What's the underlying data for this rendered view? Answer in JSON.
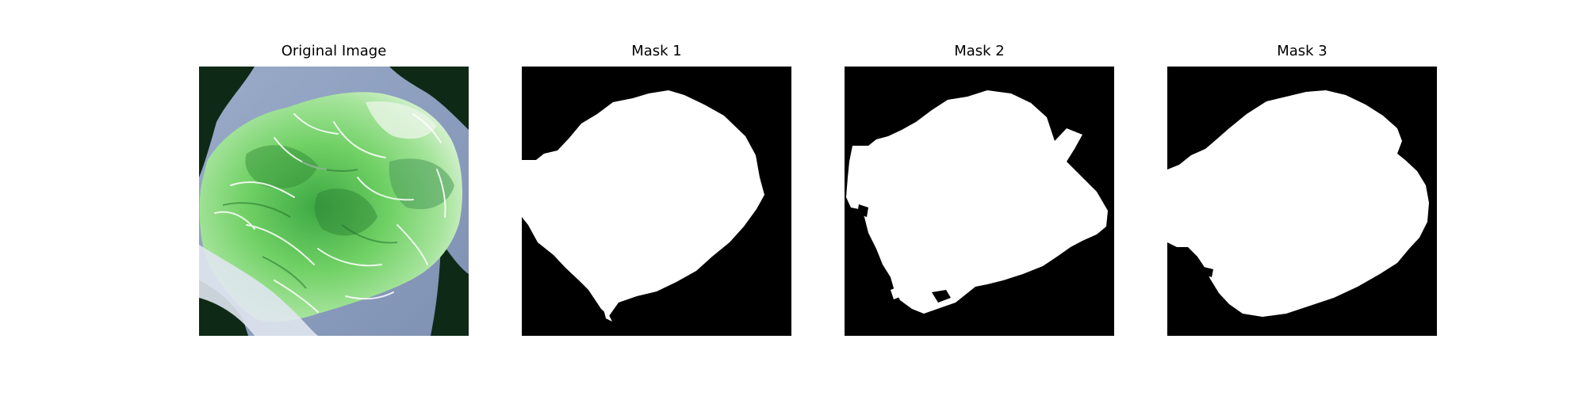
{
  "panels": [
    {
      "title": "Original Image"
    },
    {
      "title": "Mask 1"
    },
    {
      "title": "Mask 2"
    },
    {
      "title": "Mask 3"
    }
  ],
  "colors": {
    "mask_background": "#000000",
    "mask_foreground": "#ffffff",
    "water": "#8e9fbf",
    "dark_corner": "#0e2a17",
    "vegetation_light": "#9be08f",
    "vegetation_mid": "#59c451",
    "vegetation_dark": "#2f8f37"
  }
}
